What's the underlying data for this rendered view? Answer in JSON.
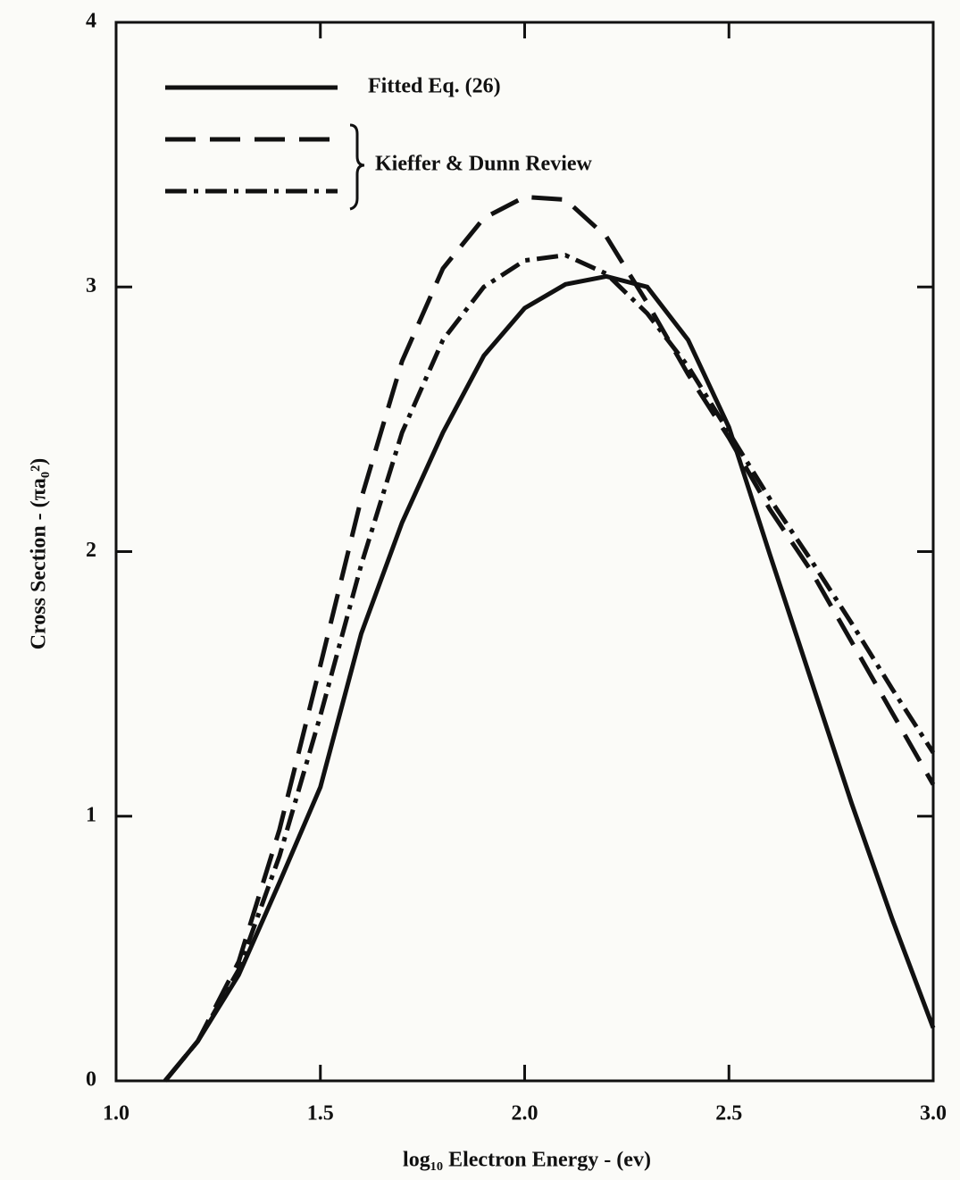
{
  "chart_data": {
    "type": "line",
    "xlabel": "log₁₀ Electron Energy - (ev)",
    "ylabel": "Cross Section - (πa₀²)",
    "x": [
      1.12,
      1.2,
      1.3,
      1.4,
      1.5,
      1.6,
      1.7,
      1.8,
      1.9,
      2.0,
      2.1,
      2.2,
      2.3,
      2.4,
      2.5,
      2.6,
      2.7,
      2.8,
      2.9,
      3.0
    ],
    "series": [
      {
        "name": "Fitted Eq. (26)",
        "color": "#111111",
        "style": "solid",
        "values": [
          0,
          0.15,
          0.4,
          0.75,
          1.11,
          1.69,
          2.11,
          2.45,
          2.74,
          2.92,
          3.01,
          3.04,
          3.0,
          2.8,
          2.47,
          1.99,
          1.52,
          1.05,
          0.61,
          0.2
        ]
      },
      {
        "color": "#111111",
        "style": "dashed",
        "values": [
          0,
          0.15,
          0.45,
          0.95,
          1.57,
          2.2,
          2.72,
          3.07,
          3.26,
          3.34,
          3.33,
          3.19,
          2.94,
          2.67,
          2.43,
          2.16,
          1.93,
          1.66,
          1.39,
          1.12
        ]
      },
      {
        "color": "#111111",
        "style": "dashdot",
        "values": [
          0,
          0.15,
          0.42,
          0.85,
          1.38,
          1.95,
          2.45,
          2.8,
          3.0,
          3.1,
          3.12,
          3.05,
          2.9,
          2.7,
          2.45,
          2.2,
          1.97,
          1.73,
          1.48,
          1.24
        ]
      }
    ],
    "group_label": "Kieffer & Dunn Review",
    "xlim": [
      1.0,
      3.0
    ],
    "xticks": [
      {
        "value": 1.0,
        "label": "1.0"
      },
      {
        "value": 1.5,
        "label": "1.5"
      },
      {
        "value": 2.0,
        "label": "2.0"
      },
      {
        "value": 2.5,
        "label": "2.5"
      },
      {
        "value": 3.0,
        "label": "3.0"
      }
    ],
    "ylim": [
      0,
      4
    ],
    "yticks": [
      0,
      1,
      2,
      3,
      4
    ]
  }
}
